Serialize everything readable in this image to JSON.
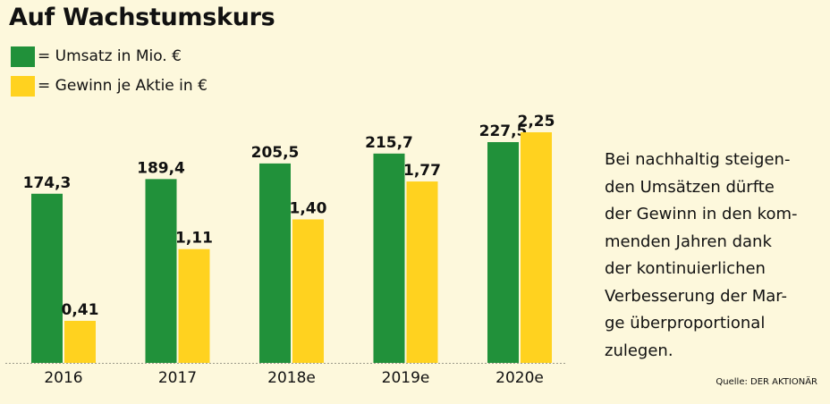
{
  "title": "Auf Wachstumskurs",
  "colors": {
    "background": "#fdf8dc",
    "umsatz": "#21913a",
    "gewinn": "#ffd21f"
  },
  "legend": [
    {
      "label": "= Umsatz in Mio. €",
      "color": "#21913a"
    },
    {
      "label": "= Gewinn je Aktie in €",
      "color": "#ffd21f"
    }
  ],
  "description": "Bei nachhaltig steigen-\nden Umsätzen dürfte\nder Gewinn in den kom-\nmenden Jahren dank\nder kontinuierlichen\nVerbesserung der Mar-\nge überproportional\nzulegen.",
  "source": "Quelle: DER AKTIONÄR",
  "chart_data": {
    "type": "bar",
    "title": "Auf Wachstumskurs",
    "categories": [
      "2016",
      "2017",
      "2018e",
      "2019e",
      "2020e"
    ],
    "series": [
      {
        "name": "Umsatz in Mio. €",
        "values": [
          174.3,
          189.4,
          205.5,
          215.7,
          227.5
        ],
        "labels": [
          "174,3",
          "189,4",
          "205,5",
          "215,7",
          "227,5"
        ],
        "color": "#21913a"
      },
      {
        "name": "Gewinn je Aktie in €",
        "values": [
          0.41,
          1.11,
          1.4,
          1.77,
          2.25
        ],
        "labels": [
          "0,41",
          "1,11",
          "1,40",
          "1,77",
          "2,25"
        ],
        "color": "#ffd21f"
      }
    ],
    "grid": false,
    "legend_position": "top-left"
  }
}
